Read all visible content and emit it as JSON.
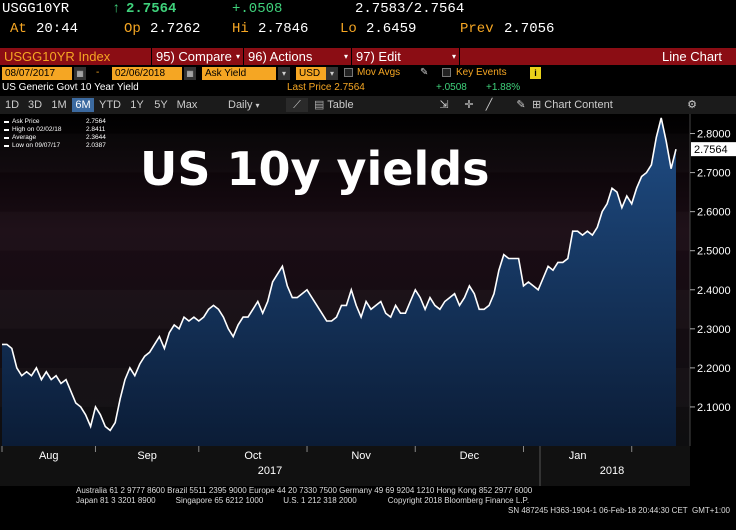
{
  "quote": {
    "ticker": "USGG10YR",
    "arrow": "↑",
    "last": "2.7564",
    "change": "+.0508",
    "bid_ask": "2.7583/2.7564",
    "at_label": "At",
    "time": "20:44",
    "op_label": "Op",
    "open": "2.7262",
    "hi_label": "Hi",
    "high": "2.7846",
    "lo_label": "Lo",
    "low": "2.6459",
    "prev_label": "Prev",
    "prev": "2.7056"
  },
  "menubar": {
    "index": "USGG10YR Index",
    "compare": "95) Compare",
    "actions": "96) Actions",
    "edit": "97) Edit",
    "title": "Line Chart"
  },
  "inputs": {
    "start_date": "08/07/2017",
    "dash": "-",
    "end_date": "02/06/2018",
    "field": "Ask Yield",
    "currency": "USD",
    "mov_avgs": "Mov Avgs",
    "key_events": "Key Events"
  },
  "info": {
    "security": "US Generic Govt 10 Year Yield",
    "last_price": "Last Price 2.7564",
    "change": "+.0508",
    "pct": "+1.88%"
  },
  "toolbar": {
    "periods": [
      "1D",
      "3D",
      "1M",
      "6M",
      "YTD",
      "1Y",
      "5Y",
      "Max"
    ],
    "active_period": "6M",
    "interval": "Daily",
    "table": "Table",
    "chart_content": "Chart Content"
  },
  "legend": {
    "rows": [
      {
        "label": "Ask Price",
        "value": "2.7564"
      },
      {
        "label": "High on 02/02/18",
        "value": "2.8411"
      },
      {
        "label": "Average",
        "value": "2.3644"
      },
      {
        "label": "Low on 09/07/17",
        "value": "2.0387"
      }
    ]
  },
  "overlay_text": "US 10y yields",
  "last_value_tag": "2.7564",
  "colors": {
    "amber": "#f5a623",
    "green": "#3fd17b",
    "menubar": "#8b0d14",
    "area_top": "#1e4a80",
    "area_bottom": "#0a1a33",
    "line": "#ffffff"
  },
  "chart_data": {
    "type": "area",
    "title": "",
    "xlabel": "",
    "ylabel": "",
    "ylim": [
      2.0,
      2.85
    ],
    "y_ticks": [
      "2.1000",
      "2.2000",
      "2.3000",
      "2.4000",
      "2.5000",
      "2.6000",
      "2.7000",
      "2.8000"
    ],
    "x_month_labels": [
      "Aug",
      "Sep",
      "Oct",
      "Nov",
      "Dec",
      "Jan"
    ],
    "x_year_labels": [
      "2017",
      "2018"
    ],
    "x_range": [
      "08/07/2017",
      "02/06/2018"
    ],
    "series": [
      {
        "values": [
          [
            0,
            2.26
          ],
          [
            1,
            2.26
          ],
          [
            2,
            2.25
          ],
          [
            3,
            2.2
          ],
          [
            4,
            2.18
          ],
          [
            5,
            2.19
          ],
          [
            6,
            2.18
          ],
          [
            7,
            2.2
          ],
          [
            8,
            2.17
          ],
          [
            9,
            2.19
          ],
          [
            10,
            2.17
          ],
          [
            11,
            2.18
          ],
          [
            12,
            2.16
          ],
          [
            13,
            2.17
          ],
          [
            14,
            2.14
          ],
          [
            15,
            2.11
          ],
          [
            16,
            2.1
          ],
          [
            17,
            2.08
          ],
          [
            18,
            2.05
          ],
          [
            19,
            2.1
          ],
          [
            20,
            2.08
          ],
          [
            21,
            2.05
          ],
          [
            22,
            2.04
          ],
          [
            23,
            2.06
          ],
          [
            24,
            2.12
          ],
          [
            25,
            2.17
          ],
          [
            26,
            2.2
          ],
          [
            27,
            2.18
          ],
          [
            28,
            2.21
          ],
          [
            29,
            2.23
          ],
          [
            30,
            2.24
          ],
          [
            31,
            2.26
          ],
          [
            32,
            2.28
          ],
          [
            33,
            2.25
          ],
          [
            34,
            2.29
          ],
          [
            35,
            2.31
          ],
          [
            36,
            2.3
          ],
          [
            37,
            2.33
          ],
          [
            38,
            2.32
          ],
          [
            39,
            2.33
          ],
          [
            40,
            2.32
          ],
          [
            41,
            2.33
          ],
          [
            42,
            2.35
          ],
          [
            43,
            2.36
          ],
          [
            44,
            2.35
          ],
          [
            45,
            2.33
          ],
          [
            46,
            2.3
          ],
          [
            47,
            2.28
          ],
          [
            48,
            2.31
          ],
          [
            49,
            2.33
          ],
          [
            50,
            2.33
          ],
          [
            51,
            2.35
          ],
          [
            52,
            2.37
          ],
          [
            53,
            2.34
          ],
          [
            54,
            2.37
          ],
          [
            55,
            2.42
          ],
          [
            56,
            2.44
          ],
          [
            57,
            2.46
          ],
          [
            58,
            2.41
          ],
          [
            59,
            2.38
          ],
          [
            60,
            2.38
          ],
          [
            61,
            2.39
          ],
          [
            62,
            2.4
          ],
          [
            63,
            2.38
          ],
          [
            64,
            2.36
          ],
          [
            65,
            2.34
          ],
          [
            66,
            2.32
          ],
          [
            67,
            2.32
          ],
          [
            68,
            2.33
          ],
          [
            69,
            2.36
          ],
          [
            70,
            2.36
          ],
          [
            71,
            2.4
          ],
          [
            72,
            2.36
          ],
          [
            73,
            2.33
          ],
          [
            74,
            2.37
          ],
          [
            75,
            2.35
          ],
          [
            76,
            2.36
          ],
          [
            77,
            2.37
          ],
          [
            78,
            2.34
          ],
          [
            79,
            2.33
          ],
          [
            80,
            2.36
          ],
          [
            81,
            2.34
          ],
          [
            82,
            2.34
          ],
          [
            83,
            2.37
          ],
          [
            84,
            2.4
          ],
          [
            85,
            2.38
          ],
          [
            86,
            2.35
          ],
          [
            87,
            2.38
          ],
          [
            88,
            2.36
          ],
          [
            89,
            2.35
          ],
          [
            90,
            2.37
          ],
          [
            91,
            2.38
          ],
          [
            92,
            2.39
          ],
          [
            93,
            2.36
          ],
          [
            94,
            2.38
          ],
          [
            95,
            2.41
          ],
          [
            96,
            2.39
          ],
          [
            97,
            2.35
          ],
          [
            98,
            2.35
          ],
          [
            99,
            2.36
          ],
          [
            100,
            2.39
          ],
          [
            101,
            2.45
          ],
          [
            102,
            2.49
          ],
          [
            103,
            2.48
          ],
          [
            104,
            2.48
          ],
          [
            105,
            2.48
          ],
          [
            106,
            2.41
          ],
          [
            107,
            2.42
          ],
          [
            108,
            2.41
          ],
          [
            109,
            2.4
          ],
          [
            110,
            2.43
          ],
          [
            111,
            2.46
          ],
          [
            112,
            2.45
          ],
          [
            113,
            2.47
          ],
          [
            114,
            2.47
          ],
          [
            115,
            2.48
          ],
          [
            116,
            2.55
          ],
          [
            117,
            2.55
          ],
          [
            118,
            2.54
          ],
          [
            119,
            2.55
          ],
          [
            120,
            2.54
          ],
          [
            121,
            2.56
          ],
          [
            122,
            2.6
          ],
          [
            123,
            2.62
          ],
          [
            124,
            2.66
          ],
          [
            125,
            2.65
          ],
          [
            126,
            2.61
          ],
          [
            127,
            2.64
          ],
          [
            128,
            2.62
          ],
          [
            129,
            2.66
          ],
          [
            130,
            2.69
          ],
          [
            131,
            2.7
          ],
          [
            132,
            2.72
          ],
          [
            133,
            2.79
          ],
          [
            134,
            2.84
          ],
          [
            135,
            2.78
          ],
          [
            136,
            2.71
          ],
          [
            137,
            2.76
          ]
        ]
      }
    ]
  },
  "footer": {
    "line1": "Australia 61 2 9777 8600 Brazil 5511 2395 9000 Europe 44 20 7330 7500 Germany 49 69 9204 1210 Hong Kong 852 2977 6000",
    "line2": "Japan 81 3 3201 8900         Singapore 65 6212 1000         U.S. 1 212 318 2000              Copyright 2018 Bloomberg Finance L.P.",
    "line3": "SN 487245 H363-1904-1 06-Feb-18 20:44:30 CET  GMT+1:00"
  }
}
